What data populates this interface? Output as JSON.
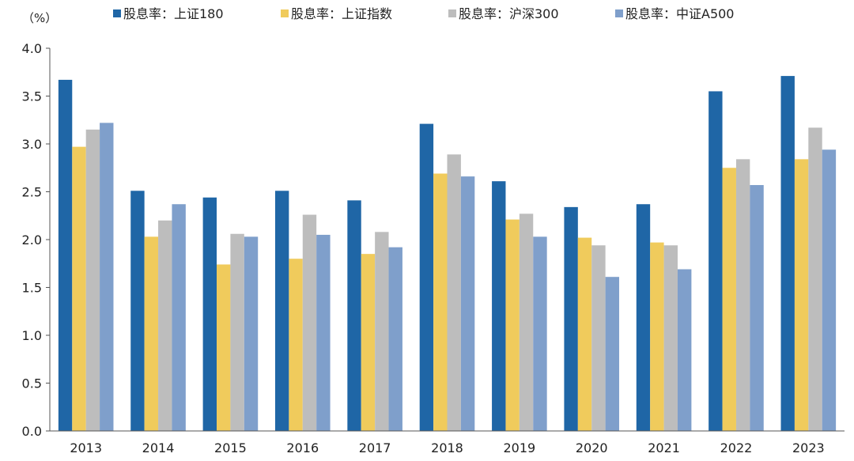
{
  "chart_data": {
    "type": "bar",
    "unit_label": "（%）",
    "categories": [
      "2013",
      "2014",
      "2015",
      "2016",
      "2017",
      "2018",
      "2019",
      "2020",
      "2021",
      "2022",
      "2023"
    ],
    "ylim": [
      0,
      4.0
    ],
    "yticks": [
      "0.0",
      "0.5",
      "1.0",
      "1.5",
      "2.0",
      "2.5",
      "3.0",
      "3.5",
      "4.0"
    ],
    "ytick_values": [
      0,
      0.5,
      1.0,
      1.5,
      2.0,
      2.5,
      3.0,
      3.5,
      4.0
    ],
    "grid": false,
    "legend_position": "top",
    "series": [
      {
        "name": "股息率：上证180",
        "color": "#1f66a6",
        "values": [
          3.67,
          2.51,
          2.44,
          2.51,
          2.41,
          3.21,
          2.61,
          2.34,
          2.37,
          3.55,
          3.71
        ]
      },
      {
        "name": "股息率：上证指数",
        "color": "#f0cb5c",
        "values": [
          2.97,
          2.03,
          1.74,
          1.8,
          1.85,
          2.69,
          2.21,
          2.02,
          1.97,
          2.75,
          2.84
        ]
      },
      {
        "name": "股息率：沪深300",
        "color": "#bdbdbd",
        "values": [
          3.15,
          2.2,
          2.06,
          2.26,
          2.08,
          2.89,
          2.27,
          1.94,
          1.94,
          2.84,
          3.17
        ]
      },
      {
        "name": "股息率：中证A500",
        "color": "#7f9fcb",
        "values": [
          3.22,
          2.37,
          2.03,
          2.05,
          1.92,
          2.66,
          2.03,
          1.61,
          1.69,
          2.57,
          2.94
        ]
      }
    ]
  }
}
